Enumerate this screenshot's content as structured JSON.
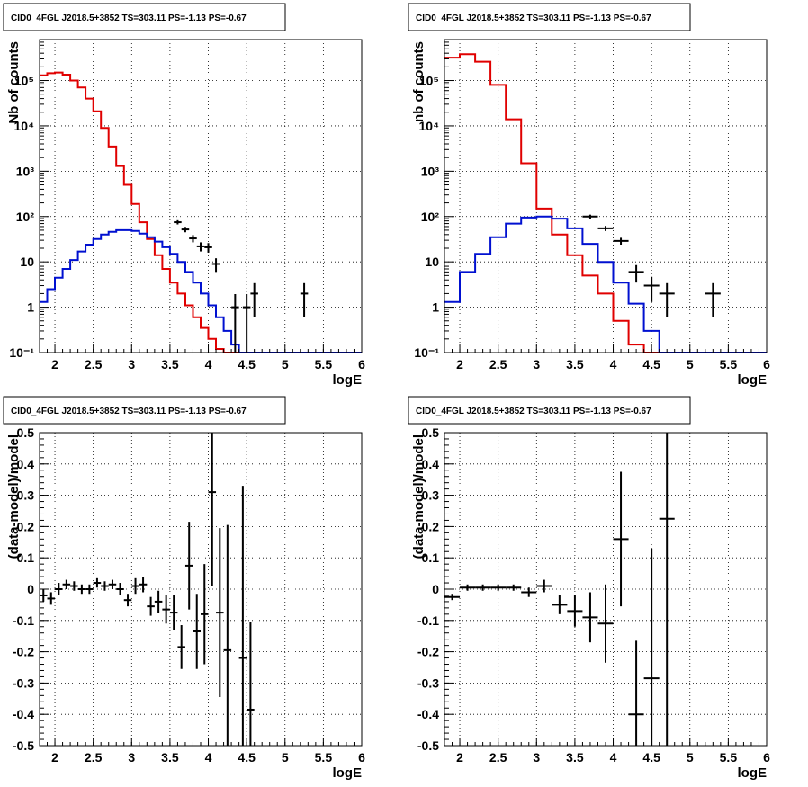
{
  "colors": {
    "data": "#000000",
    "total_model": "#e00000",
    "source_model": "#0010d0",
    "grid": "#000000",
    "background": "#ffffff"
  },
  "chart_data": [
    {
      "type": "line",
      "title": "CID0_4FGL J2018.5+3852 TS=303.11 PS=-1.13 PS=-0.67",
      "xlabel": "logE",
      "ylabel": "Nb of counts",
      "xlim": [
        1.8,
        6
      ],
      "ylim": [
        0.1,
        800000
      ],
      "yscale": "log",
      "grid": true,
      "legend": "none",
      "xticks": [
        "2",
        "2.5",
        "3",
        "3.5",
        "4",
        "4.5",
        "5",
        "5.5",
        "6"
      ],
      "yticks": [
        "10⁻¹",
        "1",
        "10",
        "10²",
        "10³",
        "10⁴",
        "10⁵"
      ],
      "bin_edges": [
        1.8,
        1.9,
        2.0,
        2.1,
        2.2,
        2.3,
        2.4,
        2.5,
        2.6,
        2.7,
        2.8,
        2.9,
        3.0,
        3.1,
        3.2,
        3.3,
        3.4,
        3.5,
        3.6,
        3.7,
        3.8,
        3.9,
        4.0,
        4.1,
        4.2,
        4.3,
        4.4,
        4.5,
        4.6,
        4.7,
        4.8,
        4.9,
        5.0,
        5.1,
        5.2,
        5.3,
        5.4,
        5.5,
        5.6,
        5.7,
        5.8,
        5.9,
        6.0
      ],
      "series": [
        {
          "role": "total_model",
          "values": [
            130000,
            145000,
            150000,
            135000,
            100000,
            70000,
            40000,
            21000,
            9000,
            3500,
            1300,
            500,
            190,
            75,
            32,
            14,
            7,
            3.5,
            2,
            1.1,
            0.6,
            0.35,
            0.2,
            0.12,
            0.1,
            0.1,
            0.1,
            0.1,
            0.1,
            0.1,
            0.1,
            0.1,
            0.1,
            0.1,
            0.1,
            0.1,
            0.1,
            0.1,
            0.1,
            0.1,
            0.1,
            0.1
          ]
        },
        {
          "role": "source_model",
          "values": [
            1.3,
            2.5,
            4.5,
            7,
            11,
            17,
            24,
            32,
            40,
            46,
            50,
            50,
            48,
            42,
            35,
            28,
            21,
            15,
            10,
            6,
            3.5,
            2,
            1.1,
            0.6,
            0.3,
            0.15,
            0.1,
            0.1,
            0.1,
            0.1,
            0.1,
            0.1,
            0.1,
            0.1,
            0.1,
            0.1,
            0.1,
            0.1,
            0.1,
            0.1,
            0.1,
            0.1
          ]
        },
        {
          "role": "data",
          "points": [
            {
              "x": 3.6,
              "y": 75,
              "yerr": 8,
              "xerr": 0.05
            },
            {
              "x": 3.7,
              "y": 52,
              "yerr": 7,
              "xerr": 0.05
            },
            {
              "x": 3.8,
              "y": 33,
              "yerr": 6,
              "xerr": 0.05
            },
            {
              "x": 3.9,
              "y": 22,
              "yerr": 5,
              "xerr": 0.05
            },
            {
              "x": 4.0,
              "y": 21,
              "yerr": 5,
              "xerr": 0.05
            },
            {
              "x": 4.1,
              "y": 9,
              "yerr": 3,
              "xerr": 0.05
            },
            {
              "x": 4.35,
              "y": 1,
              "yerr": 0.95,
              "xerr": 0.05
            },
            {
              "x": 4.5,
              "y": 1,
              "yerr": 0.95,
              "xerr": 0.05
            },
            {
              "x": 4.6,
              "y": 2,
              "yerr": 1.4,
              "xerr": 0.05
            },
            {
              "x": 5.25,
              "y": 2,
              "yerr": 1.4,
              "xerr": 0.05
            }
          ]
        }
      ]
    },
    {
      "type": "line",
      "title": "CID0_4FGL J2018.5+3852 TS=303.11 PS=-1.13 PS=-0.67",
      "xlabel": "logE",
      "ylabel": "nb of counts",
      "xlim": [
        1.8,
        6
      ],
      "ylim": [
        0.1,
        800000
      ],
      "yscale": "log",
      "grid": true,
      "legend": "none",
      "xticks": [
        "2",
        "2.5",
        "3",
        "3.5",
        "4",
        "4.5",
        "5",
        "5.5",
        "6"
      ],
      "yticks": [
        "10⁻¹",
        "1",
        "10",
        "10²",
        "10³",
        "10⁴",
        "10⁵"
      ],
      "bin_edges": [
        1.8,
        2.0,
        2.2,
        2.4,
        2.6,
        2.8,
        3.0,
        3.2,
        3.4,
        3.6,
        3.8,
        4.0,
        4.2,
        4.4,
        4.6,
        4.8,
        5.0,
        5.2,
        5.4,
        5.6,
        5.8,
        6.0
      ],
      "series": [
        {
          "role": "total_model",
          "values": [
            320000,
            380000,
            260000,
            80000,
            14000,
            1500,
            150,
            40,
            14,
            5,
            2,
            0.5,
            0.15,
            0.1,
            0.1,
            0.1,
            0.1,
            0.1,
            0.1,
            0.1,
            0.1
          ]
        },
        {
          "role": "source_model",
          "values": [
            1.3,
            6,
            15,
            35,
            70,
            95,
            100,
            90,
            55,
            25,
            10,
            3.5,
            1.2,
            0.3,
            0.1,
            0.1,
            0.1,
            0.1,
            0.1,
            0.1,
            0.1
          ]
        },
        {
          "role": "data",
          "points": [
            {
              "x": 3.7,
              "y": 100,
              "yerr": 10,
              "xerr": 0.1
            },
            {
              "x": 3.9,
              "y": 55,
              "yerr": 7,
              "xerr": 0.1
            },
            {
              "x": 4.1,
              "y": 29,
              "yerr": 5,
              "xerr": 0.1
            },
            {
              "x": 4.3,
              "y": 6,
              "yerr": 2.5,
              "xerr": 0.1
            },
            {
              "x": 4.5,
              "y": 3,
              "yerr": 1.7,
              "xerr": 0.1
            },
            {
              "x": 4.7,
              "y": 2,
              "yerr": 1.4,
              "xerr": 0.1
            },
            {
              "x": 5.3,
              "y": 2,
              "yerr": 1.4,
              "xerr": 0.1
            }
          ]
        }
      ]
    },
    {
      "type": "scatter",
      "title": "CID0_4FGL J2018.5+3852 TS=303.11 PS=-1.13 PS=-0.67",
      "xlabel": "logE",
      "ylabel": "(data-model)/model",
      "xlim": [
        1.8,
        6
      ],
      "ylim": [
        -0.5,
        0.5
      ],
      "grid": true,
      "legend": "none",
      "xticks": [
        "2",
        "2.5",
        "3",
        "3.5",
        "4",
        "4.5",
        "5",
        "5.5",
        "6"
      ],
      "yticks": [
        "-0.5",
        "-0.4",
        "-0.3",
        "-0.2",
        "-0.1",
        "0",
        "0.1",
        "0.2",
        "0.3",
        "0.4",
        "0.5"
      ],
      "series": [
        {
          "role": "data",
          "points": [
            {
              "x": 1.85,
              "y": -0.02,
              "yerr": 0.02,
              "xerr": 0.05
            },
            {
              "x": 1.95,
              "y": -0.03,
              "yerr": 0.02,
              "xerr": 0.05
            },
            {
              "x": 2.05,
              "y": 0.0,
              "yerr": 0.02,
              "xerr": 0.05
            },
            {
              "x": 2.15,
              "y": 0.015,
              "yerr": 0.015,
              "xerr": 0.05
            },
            {
              "x": 2.25,
              "y": 0.01,
              "yerr": 0.015,
              "xerr": 0.05
            },
            {
              "x": 2.35,
              "y": 0.0,
              "yerr": 0.015,
              "xerr": 0.05
            },
            {
              "x": 2.45,
              "y": 0.0,
              "yerr": 0.015,
              "xerr": 0.05
            },
            {
              "x": 2.55,
              "y": 0.02,
              "yerr": 0.015,
              "xerr": 0.05
            },
            {
              "x": 2.65,
              "y": 0.01,
              "yerr": 0.015,
              "xerr": 0.05
            },
            {
              "x": 2.75,
              "y": 0.015,
              "yerr": 0.015,
              "xerr": 0.05
            },
            {
              "x": 2.85,
              "y": 0.0,
              "yerr": 0.02,
              "xerr": 0.05
            },
            {
              "x": 2.95,
              "y": -0.035,
              "yerr": 0.02,
              "xerr": 0.05
            },
            {
              "x": 3.05,
              "y": 0.01,
              "yerr": 0.025,
              "xerr": 0.05
            },
            {
              "x": 3.15,
              "y": 0.015,
              "yerr": 0.025,
              "xerr": 0.05
            },
            {
              "x": 3.25,
              "y": -0.055,
              "yerr": 0.03,
              "xerr": 0.05
            },
            {
              "x": 3.35,
              "y": -0.04,
              "yerr": 0.035,
              "xerr": 0.05
            },
            {
              "x": 3.45,
              "y": -0.065,
              "yerr": 0.045,
              "xerr": 0.05
            },
            {
              "x": 3.55,
              "y": -0.075,
              "yerr": 0.055,
              "xerr": 0.05
            },
            {
              "x": 3.65,
              "y": -0.185,
              "yerr": 0.07,
              "xerr": 0.05
            },
            {
              "x": 3.75,
              "y": 0.075,
              "yerr": 0.14,
              "xerr": 0.05
            },
            {
              "x": 3.85,
              "y": -0.135,
              "yerr": 0.12,
              "xerr": 0.05
            },
            {
              "x": 3.95,
              "y": -0.08,
              "yerr": 0.16,
              "xerr": 0.05
            },
            {
              "x": 4.05,
              "y": 0.31,
              "yerr": 0.3,
              "xerr": 0.05
            },
            {
              "x": 4.15,
              "y": -0.075,
              "yerr": 0.27,
              "xerr": 0.05
            },
            {
              "x": 4.25,
              "y": -0.195,
              "yerr": 0.4,
              "xerr": 0.05
            },
            {
              "x": 4.45,
              "y": -0.22,
              "yerr": 0.55,
              "xerr": 0.05
            },
            {
              "x": 4.55,
              "y": -0.385,
              "yerr": 0.28,
              "xerr": 0.05
            }
          ]
        }
      ]
    },
    {
      "type": "scatter",
      "title": "CID0_4FGL J2018.5+3852 TS=303.11 PS=-1.13 PS=-0.67",
      "xlabel": "logE",
      "ylabel": "(data-model)/model",
      "xlim": [
        1.8,
        6
      ],
      "ylim": [
        -0.5,
        0.5
      ],
      "grid": true,
      "legend": "none",
      "xticks": [
        "2",
        "2.5",
        "3",
        "3.5",
        "4",
        "4.5",
        "5",
        "5.5",
        "6"
      ],
      "yticks": [
        "-0.5",
        "-0.4",
        "-0.3",
        "-0.2",
        "-0.1",
        "0",
        "0.1",
        "0.2",
        "0.3",
        "0.4",
        "0.5"
      ],
      "series": [
        {
          "role": "data",
          "points": [
            {
              "x": 1.9,
              "y": -0.025,
              "yerr": 0.01,
              "xerr": 0.1
            },
            {
              "x": 2.1,
              "y": 0.005,
              "yerr": 0.01,
              "xerr": 0.1
            },
            {
              "x": 2.3,
              "y": 0.005,
              "yerr": 0.01,
              "xerr": 0.1
            },
            {
              "x": 2.5,
              "y": 0.005,
              "yerr": 0.01,
              "xerr": 0.1
            },
            {
              "x": 2.7,
              "y": 0.005,
              "yerr": 0.01,
              "xerr": 0.1
            },
            {
              "x": 2.9,
              "y": -0.01,
              "yerr": 0.015,
              "xerr": 0.1
            },
            {
              "x": 3.1,
              "y": 0.01,
              "yerr": 0.02,
              "xerr": 0.1
            },
            {
              "x": 3.3,
              "y": -0.05,
              "yerr": 0.03,
              "xerr": 0.1
            },
            {
              "x": 3.5,
              "y": -0.07,
              "yerr": 0.05,
              "xerr": 0.1
            },
            {
              "x": 3.7,
              "y": -0.09,
              "yerr": 0.08,
              "xerr": 0.1
            },
            {
              "x": 3.9,
              "y": -0.11,
              "yerr": 0.125,
              "xerr": 0.1
            },
            {
              "x": 4.1,
              "y": 0.16,
              "yerr": 0.215,
              "xerr": 0.1
            },
            {
              "x": 4.3,
              "y": -0.4,
              "yerr": 0.235,
              "xerr": 0.1
            },
            {
              "x": 4.5,
              "y": -0.285,
              "yerr": 0.415,
              "xerr": 0.1
            },
            {
              "x": 4.7,
              "y": 0.225,
              "yerr": 0.77,
              "xerr": 0.1
            }
          ]
        }
      ]
    }
  ]
}
